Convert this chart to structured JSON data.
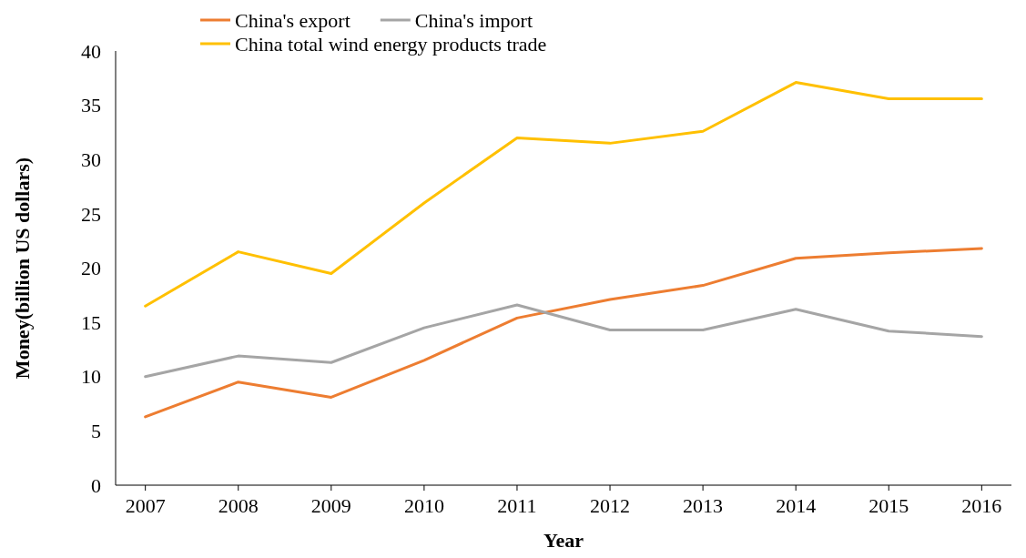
{
  "chart_data": {
    "type": "line",
    "xlabel": "Year",
    "ylabel": "Money(billion US dollars)",
    "categories": [
      "2007",
      "2008",
      "2009",
      "2010",
      "2011",
      "2012",
      "2013",
      "2014",
      "2015",
      "2016"
    ],
    "series": [
      {
        "name": "China's export",
        "color": "#ed7d31",
        "values": [
          6.3,
          9.5,
          8.1,
          11.5,
          15.4,
          17.1,
          18.4,
          20.9,
          21.4,
          21.8
        ]
      },
      {
        "name": "China's import",
        "color": "#a5a5a5",
        "values": [
          10.0,
          11.9,
          11.3,
          14.5,
          16.6,
          14.3,
          14.3,
          16.2,
          14.2,
          13.7
        ]
      },
      {
        "name": "China total wind energy products trade",
        "color": "#ffc000",
        "values": [
          16.5,
          21.5,
          19.5,
          26.0,
          32.0,
          31.5,
          32.6,
          37.1,
          35.6,
          35.6
        ]
      }
    ],
    "ylim": [
      0,
      40
    ],
    "yticks": [
      0,
      5,
      10,
      15,
      20,
      25,
      30,
      35,
      40
    ],
    "grid": false,
    "legend": "top",
    "marker": "none",
    "line_style": "solid"
  }
}
